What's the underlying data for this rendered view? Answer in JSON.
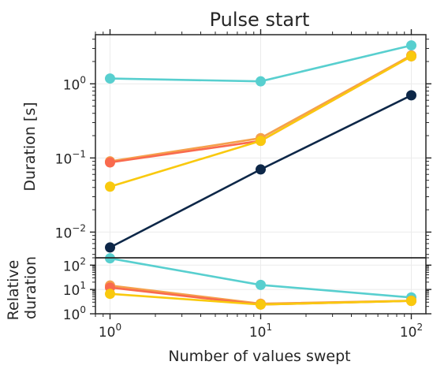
{
  "chart_data": [
    {
      "type": "line",
      "title": "Pulse start",
      "xlabel": "",
      "ylabel": "Duration [s]",
      "xscale": "log",
      "yscale": "log",
      "x": [
        1,
        10,
        100
      ],
      "xlim": [
        0.8,
        125
      ],
      "ylim": [
        0.0045,
        4.6
      ],
      "grid": true,
      "yticks": [
        {
          "value": 0.01,
          "base": "10",
          "exp": "−2"
        },
        {
          "value": 0.1,
          "base": "10",
          "exp": "−1"
        },
        {
          "value": 1,
          "base": "10",
          "exp": "0"
        }
      ],
      "series": [
        {
          "color": "#58cfcf",
          "values": [
            1.18,
            1.08,
            3.3
          ]
        },
        {
          "color": "#f5a04c",
          "values": [
            0.09,
            0.185,
            2.42
          ]
        },
        {
          "color": "#f96a4e",
          "values": [
            0.087,
            0.17,
            2.35
          ]
        },
        {
          "color": "#f9c90e",
          "values": [
            0.041,
            0.17,
            2.35
          ]
        },
        {
          "color": "#0d2748",
          "values": [
            0.0062,
            0.07,
            0.7
          ]
        }
      ]
    },
    {
      "type": "line",
      "title": "",
      "xlabel": "Number of values swept",
      "ylabel": "Relative\nduration",
      "xscale": "log",
      "yscale": "log",
      "x": [
        1,
        10,
        100
      ],
      "xlim": [
        0.8,
        125
      ],
      "ylim": [
        1,
        200
      ],
      "grid": true,
      "xticks": [
        {
          "value": 1,
          "base": "10",
          "exp": "0"
        },
        {
          "value": 10,
          "base": "10",
          "exp": "1"
        },
        {
          "value": 100,
          "base": "10",
          "exp": "2"
        }
      ],
      "yticks": [
        {
          "value": 1,
          "base": "10",
          "exp": "0"
        },
        {
          "value": 10,
          "base": "10",
          "exp": "1"
        },
        {
          "value": 100,
          "base": "10",
          "exp": "2"
        }
      ],
      "series": [
        {
          "color": "#58cfcf",
          "values": [
            190,
            15.4,
            4.7
          ]
        },
        {
          "color": "#f5a04c",
          "values": [
            14.5,
            2.6,
            3.46
          ]
        },
        {
          "color": "#f96a4e",
          "values": [
            12,
            2.4,
            3.4
          ]
        },
        {
          "color": "#f9c90e",
          "values": [
            6.6,
            2.4,
            3.4
          ]
        }
      ]
    }
  ]
}
